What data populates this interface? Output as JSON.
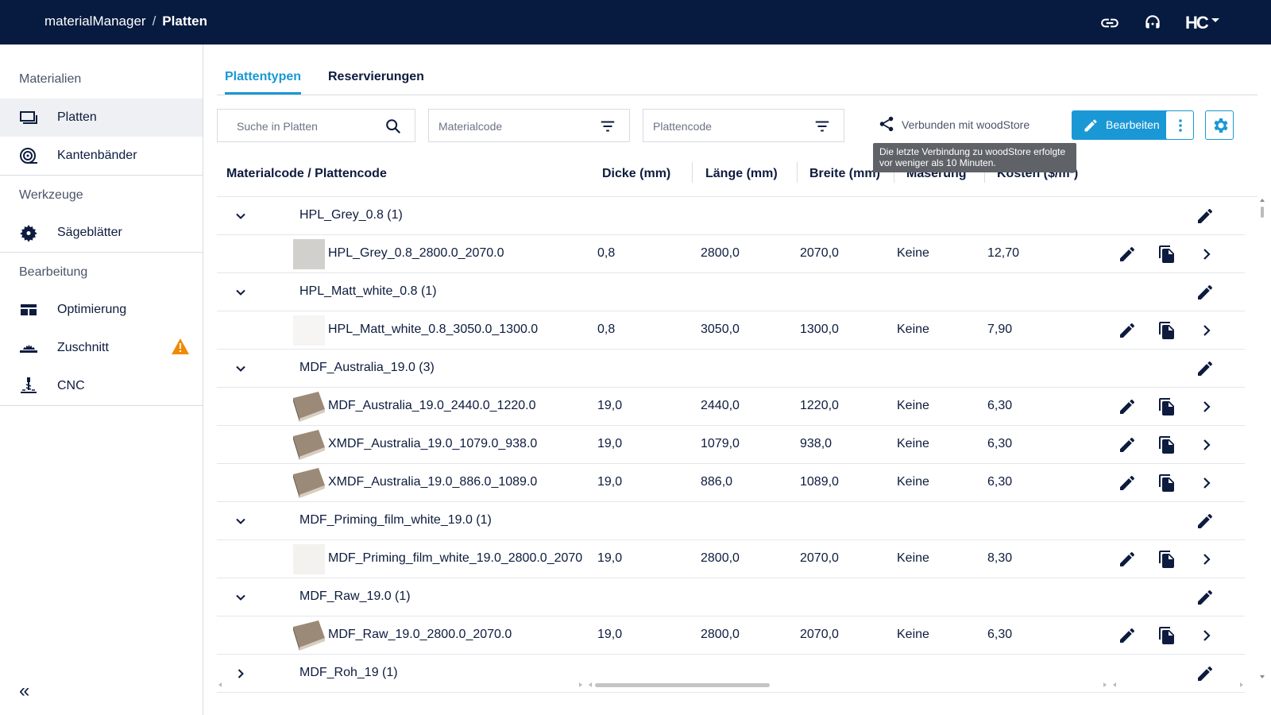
{
  "header": {
    "app": "materialManager",
    "separator": "/",
    "page": "Platten",
    "logo": "HC"
  },
  "sidebar": {
    "sections": [
      {
        "title": "Materialien",
        "items": [
          {
            "label": "Platten",
            "icon": "platten-icon",
            "active": true
          },
          {
            "label": "Kantenbänder",
            "icon": "kantenband-icon"
          }
        ]
      },
      {
        "title": "Werkzeuge",
        "items": [
          {
            "label": "Sägeblätter",
            "icon": "saw-blade-icon"
          }
        ]
      },
      {
        "title": "Bearbeitung",
        "items": [
          {
            "label": "Optimierung",
            "icon": "optimization-icon"
          },
          {
            "label": "Zuschnitt",
            "icon": "cutting-icon",
            "warning": true
          },
          {
            "label": "CNC",
            "icon": "cnc-icon"
          }
        ]
      }
    ],
    "collapse_label": "«"
  },
  "tabs": [
    {
      "label": "Plattentypen",
      "active": true
    },
    {
      "label": "Reservierungen"
    }
  ],
  "toolbar": {
    "search_placeholder": "Suche in Platten",
    "materialcode_placeholder": "Materialcode",
    "plattencode_placeholder": "Plattencode",
    "connected_label": "Verbunden mit woodStore",
    "tooltip": "Die letzte Verbindung zu woodStore erfolgte vor weniger als 10 Minuten.",
    "edit_label": "Bearbeiten"
  },
  "columns": {
    "code": "Materialcode / Plattencode",
    "dicke": "Dicke (mm)",
    "laenge": "Länge (mm)",
    "breite": "Breite (mm)",
    "maserung": "Maserung",
    "kosten": "Kosten ($/m²)"
  },
  "rows": [
    {
      "type": "group",
      "label": "HPL_Grey_0.8 (1)",
      "expanded": true
    },
    {
      "type": "item",
      "code": "HPL_Grey_0.8_2800.0_2070.0",
      "dicke": "0,8",
      "laenge": "2800,0",
      "breite": "2070,0",
      "maserung": "Keine",
      "kosten": "12,70",
      "swatch": "#d2d0cd"
    },
    {
      "type": "group",
      "label": "HPL_Matt_white_0.8 (1)",
      "expanded": true
    },
    {
      "type": "item",
      "code": "HPL_Matt_white_0.8_3050.0_1300.0",
      "dicke": "0,8",
      "laenge": "3050,0",
      "breite": "1300,0",
      "maserung": "Keine",
      "kosten": "7,90",
      "swatch": "#f6f5f3"
    },
    {
      "type": "group",
      "label": "MDF_Australia_19.0 (3)",
      "expanded": true
    },
    {
      "type": "item",
      "code": "MDF_Australia_19.0_2440.0_1220.0",
      "dicke": "19,0",
      "laenge": "2440,0",
      "breite": "1220,0",
      "maserung": "Keine",
      "kosten": "6,30",
      "swatch": "board"
    },
    {
      "type": "item",
      "code": "XMDF_Australia_19.0_1079.0_938.0",
      "dicke": "19,0",
      "laenge": "1079,0",
      "breite": "938,0",
      "maserung": "Keine",
      "kosten": "6,30",
      "swatch": "board"
    },
    {
      "type": "item",
      "code": "XMDF_Australia_19.0_886.0_1089.0",
      "dicke": "19,0",
      "laenge": "886,0",
      "breite": "1089,0",
      "maserung": "Keine",
      "kosten": "6,30",
      "swatch": "board"
    },
    {
      "type": "group",
      "label": "MDF_Priming_film_white_19.0 (1)",
      "expanded": true
    },
    {
      "type": "item",
      "code": "MDF_Priming_film_white_19.0_2800.0_2070",
      "dicke": "19,0",
      "laenge": "2800,0",
      "breite": "2070,0",
      "maserung": "Keine",
      "kosten": "8,30",
      "swatch": "#f4f2ee"
    },
    {
      "type": "group",
      "label": "MDF_Raw_19.0 (1)",
      "expanded": true
    },
    {
      "type": "item",
      "code": "MDF_Raw_19.0_2800.0_2070.0",
      "dicke": "19,0",
      "laenge": "2800,0",
      "breite": "2070,0",
      "maserung": "Keine",
      "kosten": "6,30",
      "swatch": "board"
    },
    {
      "type": "group",
      "label": "MDF_Roh_19 (1)",
      "expanded": false
    }
  ],
  "colors": {
    "nav": "#071a3f",
    "accent": "#1a98d5",
    "warning": "#f08a00"
  }
}
